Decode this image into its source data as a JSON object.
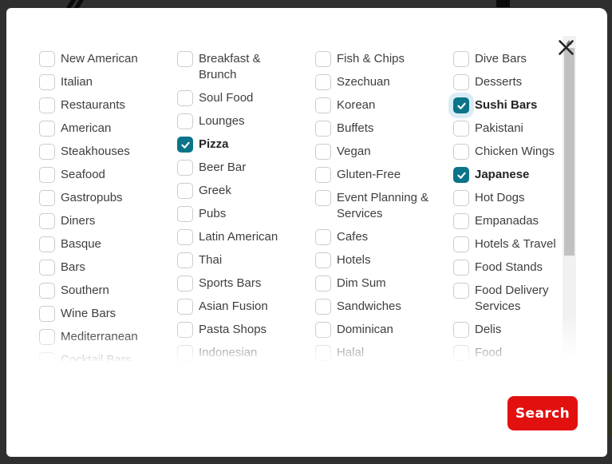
{
  "modal": {
    "close_icon": "x-close",
    "search_button": {
      "label": "Search",
      "background": "#e31010",
      "text_color": "#ffffff"
    },
    "checkbox_colors": {
      "checked_background": "#0b7489",
      "unchecked_border": "#cccccc",
      "checkmark": "#ffffff"
    },
    "selected_categories": [
      "Pizza",
      "Sushi Bars",
      "Japanese"
    ],
    "columns": [
      {
        "items": [
          {
            "label": "New American",
            "checked": false
          },
          {
            "label": "Italian",
            "checked": false
          },
          {
            "label": "Restaurants",
            "checked": false
          },
          {
            "label": "American",
            "checked": false
          },
          {
            "label": "Steakhouses",
            "checked": false
          },
          {
            "label": "Seafood",
            "checked": false
          },
          {
            "label": "Gastropubs",
            "checked": false
          },
          {
            "label": "Diners",
            "checked": false
          },
          {
            "label": "Basque",
            "checked": false
          },
          {
            "label": "Bars",
            "checked": false
          },
          {
            "label": "Southern",
            "checked": false
          },
          {
            "label": "Wine Bars",
            "checked": false
          },
          {
            "label": "Mediterranean",
            "checked": false
          },
          {
            "label": "Cocktail Bars",
            "checked": false
          }
        ]
      },
      {
        "items": [
          {
            "label": "Breakfast & Brunch",
            "checked": false
          },
          {
            "label": "Soul Food",
            "checked": false
          },
          {
            "label": "Lounges",
            "checked": false
          },
          {
            "label": "Pizza",
            "checked": true
          },
          {
            "label": "Beer Bar",
            "checked": false
          },
          {
            "label": "Greek",
            "checked": false
          },
          {
            "label": "Pubs",
            "checked": false
          },
          {
            "label": "Latin American",
            "checked": false
          },
          {
            "label": "Thai",
            "checked": false
          },
          {
            "label": "Sports Bars",
            "checked": false
          },
          {
            "label": "Asian Fusion",
            "checked": false
          },
          {
            "label": "Pasta Shops",
            "checked": false
          },
          {
            "label": "Indonesian",
            "checked": false
          }
        ]
      },
      {
        "items": [
          {
            "label": "Fish & Chips",
            "checked": false
          },
          {
            "label": "Szechuan",
            "checked": false
          },
          {
            "label": "Korean",
            "checked": false
          },
          {
            "label": "Buffets",
            "checked": false
          },
          {
            "label": "Vegan",
            "checked": false
          },
          {
            "label": "Gluten-Free",
            "checked": false
          },
          {
            "label": "Event Planning & Services",
            "checked": false
          },
          {
            "label": "Cafes",
            "checked": false
          },
          {
            "label": "Hotels",
            "checked": false
          },
          {
            "label": "Dim Sum",
            "checked": false
          },
          {
            "label": "Sandwiches",
            "checked": false
          },
          {
            "label": "Dominican",
            "checked": false
          },
          {
            "label": "Halal",
            "checked": false
          }
        ]
      },
      {
        "items": [
          {
            "label": "Dive Bars",
            "checked": false
          },
          {
            "label": "Desserts",
            "checked": false
          },
          {
            "label": "Sushi Bars",
            "checked": true,
            "halo": true
          },
          {
            "label": "Pakistani",
            "checked": false
          },
          {
            "label": "Chicken Wings",
            "checked": false
          },
          {
            "label": "Japanese",
            "checked": true
          },
          {
            "label": "Hot Dogs",
            "checked": false
          },
          {
            "label": "Empanadas",
            "checked": false
          },
          {
            "label": "Hotels & Travel",
            "checked": false
          },
          {
            "label": "Food Stands",
            "checked": false
          },
          {
            "label": "Food Delivery Services",
            "checked": false
          },
          {
            "label": "Delis",
            "checked": false
          },
          {
            "label": "Food",
            "checked": false
          }
        ]
      }
    ]
  }
}
